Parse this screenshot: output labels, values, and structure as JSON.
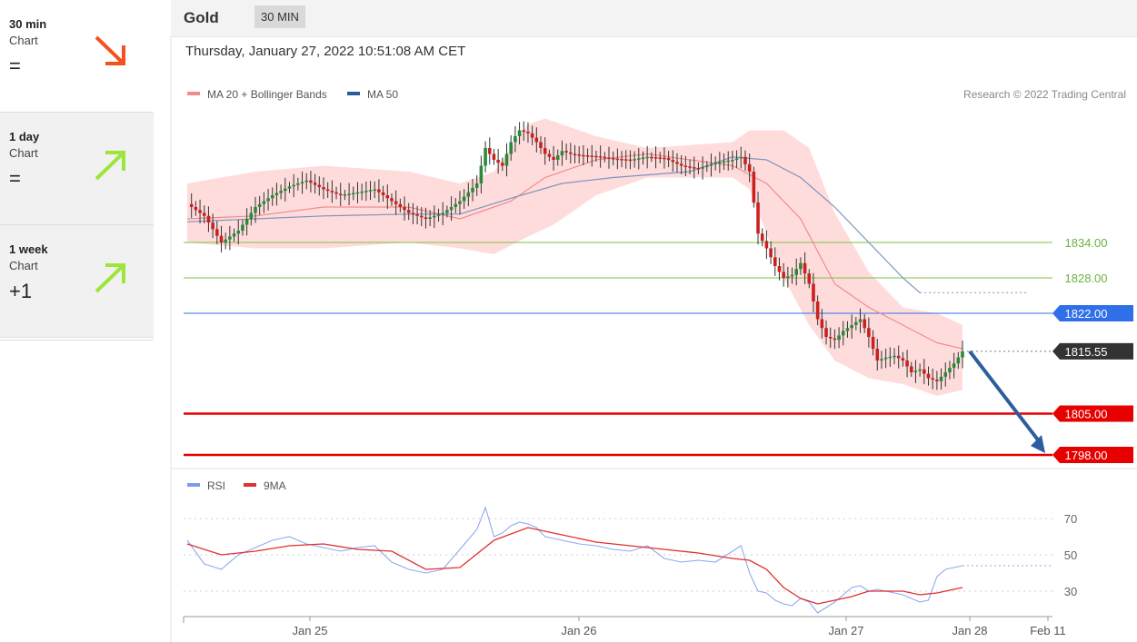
{
  "sidebar": {
    "items": [
      {
        "name": "30 min",
        "sub": "Chart",
        "signal": "=",
        "arrow": "down",
        "color": "#f4511e"
      },
      {
        "name": "1 day",
        "sub": "Chart",
        "signal": "=",
        "arrow": "up",
        "color": "#9ee53a"
      },
      {
        "name": "1 week",
        "sub": "Chart",
        "signal": "+1",
        "arrow": "up",
        "color": "#9ee53a"
      }
    ]
  },
  "header": {
    "title": "Gold",
    "timeframe": "30 MIN"
  },
  "timestamp": "Thursday, January 27, 2022 10:51:08 AM CET",
  "chart_data": [
    {
      "type": "candlestick",
      "legend": [
        {
          "label": "MA 20 + Bollinger Bands",
          "color": "#f28b8b"
        },
        {
          "label": "MA 50",
          "color": "#2d5a9b"
        }
      ],
      "credit": "Research © 2022 Trading Central",
      "ylim": [
        1793,
        1860
      ],
      "x_ticks": [
        "Jan 25",
        "Jan 26",
        "Jan 27",
        "Jan 28",
        "Feb 11"
      ],
      "levels": [
        {
          "value": 1834.0,
          "label": "1834.00",
          "color": "#7dc142",
          "style": "thin"
        },
        {
          "value": 1828.0,
          "label": "1828.00",
          "color": "#7dc142",
          "style": "thin"
        },
        {
          "value": 1822.0,
          "label": "1822.00",
          "color": "#2f6fe8",
          "style": "thin"
        },
        {
          "value": 1815.55,
          "label": "1815.55",
          "color": "#333333",
          "style": "current"
        },
        {
          "value": 1805.0,
          "label": "1805.00",
          "color": "#e60000",
          "style": "thick"
        },
        {
          "value": 1798.0,
          "label": "1798.00",
          "color": "#e60000",
          "style": "thick"
        }
      ],
      "price_path": [
        [
          0,
          1840.5
        ],
        [
          4,
          1838.5
        ],
        [
          8,
          1834
        ],
        [
          12,
          1836
        ],
        [
          16,
          1840
        ],
        [
          20,
          1842
        ],
        [
          24,
          1843.5
        ],
        [
          28,
          1844.5
        ],
        [
          32,
          1843
        ],
        [
          36,
          1842
        ],
        [
          40,
          1842.5
        ],
        [
          44,
          1843
        ],
        [
          48,
          1841
        ],
        [
          52,
          1839
        ],
        [
          56,
          1838
        ],
        [
          60,
          1839
        ],
        [
          64,
          1841
        ],
        [
          68,
          1844
        ],
        [
          70,
          1850
        ],
        [
          72,
          1848
        ],
        [
          74,
          1847
        ],
        [
          76,
          1851
        ],
        [
          78,
          1853
        ],
        [
          80,
          1852.5
        ],
        [
          82,
          1851
        ],
        [
          84,
          1849
        ],
        [
          86,
          1848
        ],
        [
          88,
          1849.5
        ],
        [
          90,
          1849
        ],
        [
          92,
          1848.8
        ],
        [
          96,
          1848.6
        ],
        [
          100,
          1848.2
        ],
        [
          104,
          1848
        ],
        [
          108,
          1848.5
        ],
        [
          112,
          1848.3
        ],
        [
          116,
          1847
        ],
        [
          120,
          1846.5
        ],
        [
          124,
          1847.5
        ],
        [
          128,
          1848
        ],
        [
          130,
          1848.5
        ],
        [
          132,
          1846
        ],
        [
          134,
          1835.5
        ],
        [
          136,
          1833
        ],
        [
          138,
          1830
        ],
        [
          140,
          1828
        ],
        [
          142,
          1828.5
        ],
        [
          144,
          1830.5
        ],
        [
          146,
          1827
        ],
        [
          148,
          1821
        ],
        [
          150,
          1818
        ],
        [
          152,
          1817.5
        ],
        [
          154,
          1819
        ],
        [
          156,
          1820
        ],
        [
          158,
          1821
        ],
        [
          160,
          1818
        ],
        [
          162,
          1814
        ],
        [
          164,
          1814.5
        ],
        [
          166,
          1814.8
        ],
        [
          168,
          1814
        ],
        [
          170,
          1812
        ],
        [
          172,
          1812.5
        ],
        [
          174,
          1811
        ],
        [
          176,
          1810.5
        ],
        [
          178,
          1812
        ],
        [
          180,
          1813.5
        ],
        [
          182,
          1815.55
        ]
      ],
      "ma20_path": [
        [
          0,
          1838
        ],
        [
          16,
          1838.5
        ],
        [
          32,
          1840
        ],
        [
          52,
          1840
        ],
        [
          64,
          1838
        ],
        [
          76,
          1841
        ],
        [
          84,
          1845
        ],
        [
          96,
          1848
        ],
        [
          108,
          1849
        ],
        [
          128,
          1847
        ],
        [
          136,
          1844
        ],
        [
          144,
          1838
        ],
        [
          152,
          1827
        ],
        [
          160,
          1823
        ],
        [
          168,
          1820
        ],
        [
          176,
          1817
        ],
        [
          182,
          1816
        ]
      ],
      "ma50_path": [
        [
          0,
          1837.5
        ],
        [
          16,
          1838
        ],
        [
          32,
          1838.5
        ],
        [
          52,
          1838.8
        ],
        [
          64,
          1838.8
        ],
        [
          76,
          1841.5
        ],
        [
          88,
          1844
        ],
        [
          100,
          1845
        ],
        [
          118,
          1846
        ],
        [
          128,
          1848.5
        ],
        [
          136,
          1848
        ],
        [
          144,
          1845
        ],
        [
          152,
          1840
        ],
        [
          160,
          1834
        ],
        [
          168,
          1828
        ],
        [
          172,
          1825.5
        ]
      ],
      "bb_upper_path": [
        [
          0,
          1844
        ],
        [
          16,
          1846
        ],
        [
          32,
          1847
        ],
        [
          52,
          1846
        ],
        [
          64,
          1844
        ],
        [
          72,
          1846
        ],
        [
          80,
          1854
        ],
        [
          84,
          1855
        ],
        [
          96,
          1852
        ],
        [
          108,
          1850
        ],
        [
          128,
          1851
        ],
        [
          132,
          1853
        ],
        [
          140,
          1853
        ],
        [
          146,
          1850
        ],
        [
          152,
          1839
        ],
        [
          160,
          1829
        ],
        [
          168,
          1823
        ],
        [
          176,
          1822
        ],
        [
          182,
          1820
        ]
      ],
      "bb_lower_path": [
        [
          0,
          1834
        ],
        [
          16,
          1833
        ],
        [
          32,
          1833
        ],
        [
          52,
          1834
        ],
        [
          64,
          1833
        ],
        [
          72,
          1832
        ],
        [
          80,
          1835
        ],
        [
          86,
          1837
        ],
        [
          96,
          1842
        ],
        [
          108,
          1845
        ],
        [
          128,
          1845
        ],
        [
          132,
          1843
        ],
        [
          140,
          1828
        ],
        [
          146,
          1820
        ],
        [
          152,
          1814
        ],
        [
          160,
          1811
        ],
        [
          168,
          1810
        ],
        [
          176,
          1808
        ],
        [
          182,
          1809
        ]
      ],
      "forecast_arrow": {
        "from": 1815.55,
        "to": 1798.0,
        "color": "#2e5d9f"
      }
    },
    {
      "type": "line",
      "legend": [
        {
          "label": "RSI",
          "color": "#7b9ee6"
        },
        {
          "label": "9MA",
          "color": "#e03030"
        }
      ],
      "ylim": [
        15,
        85
      ],
      "y_ticks": [
        70,
        50,
        30
      ],
      "rsi_path": [
        [
          0,
          58
        ],
        [
          4,
          45
        ],
        [
          8,
          42
        ],
        [
          12,
          50
        ],
        [
          16,
          54
        ],
        [
          20,
          58
        ],
        [
          24,
          60
        ],
        [
          28,
          56
        ],
        [
          32,
          54
        ],
        [
          36,
          52
        ],
        [
          40,
          54
        ],
        [
          44,
          55
        ],
        [
          48,
          46
        ],
        [
          52,
          42
        ],
        [
          56,
          40
        ],
        [
          60,
          42
        ],
        [
          64,
          53
        ],
        [
          68,
          64
        ],
        [
          70,
          76
        ],
        [
          72,
          60
        ],
        [
          74,
          62
        ],
        [
          76,
          66
        ],
        [
          78,
          68
        ],
        [
          80,
          67
        ],
        [
          82,
          65
        ],
        [
          84,
          60
        ],
        [
          88,
          58
        ],
        [
          92,
          56
        ],
        [
          96,
          55
        ],
        [
          100,
          53
        ],
        [
          104,
          52
        ],
        [
          108,
          55
        ],
        [
          112,
          48
        ],
        [
          116,
          46
        ],
        [
          120,
          47
        ],
        [
          124,
          46
        ],
        [
          128,
          52
        ],
        [
          130,
          55
        ],
        [
          132,
          40
        ],
        [
          134,
          30
        ],
        [
          136,
          29
        ],
        [
          138,
          25
        ],
        [
          140,
          23
        ],
        [
          142,
          22
        ],
        [
          144,
          26
        ],
        [
          146,
          24
        ],
        [
          148,
          18
        ],
        [
          150,
          21
        ],
        [
          152,
          24
        ],
        [
          154,
          28
        ],
        [
          156,
          32
        ],
        [
          158,
          33
        ],
        [
          160,
          30
        ],
        [
          162,
          31
        ],
        [
          164,
          30
        ],
        [
          166,
          29
        ],
        [
          168,
          28
        ],
        [
          170,
          26
        ],
        [
          172,
          24
        ],
        [
          174,
          25
        ],
        [
          176,
          38
        ],
        [
          178,
          42
        ],
        [
          180,
          43
        ],
        [
          182,
          44
        ]
      ],
      "ma_path": [
        [
          0,
          56
        ],
        [
          8,
          50
        ],
        [
          16,
          52
        ],
        [
          24,
          55
        ],
        [
          32,
          56
        ],
        [
          40,
          53
        ],
        [
          48,
          52
        ],
        [
          56,
          42
        ],
        [
          64,
          43
        ],
        [
          72,
          58
        ],
        [
          80,
          65
        ],
        [
          88,
          61
        ],
        [
          96,
          57
        ],
        [
          104,
          55
        ],
        [
          112,
          53
        ],
        [
          120,
          51
        ],
        [
          128,
          48
        ],
        [
          132,
          47
        ],
        [
          136,
          42
        ],
        [
          140,
          32
        ],
        [
          144,
          26
        ],
        [
          148,
          23
        ],
        [
          152,
          25
        ],
        [
          156,
          27
        ],
        [
          160,
          30
        ],
        [
          164,
          30
        ],
        [
          168,
          30
        ],
        [
          172,
          28
        ],
        [
          176,
          29
        ],
        [
          180,
          31
        ],
        [
          182,
          32
        ]
      ]
    }
  ]
}
